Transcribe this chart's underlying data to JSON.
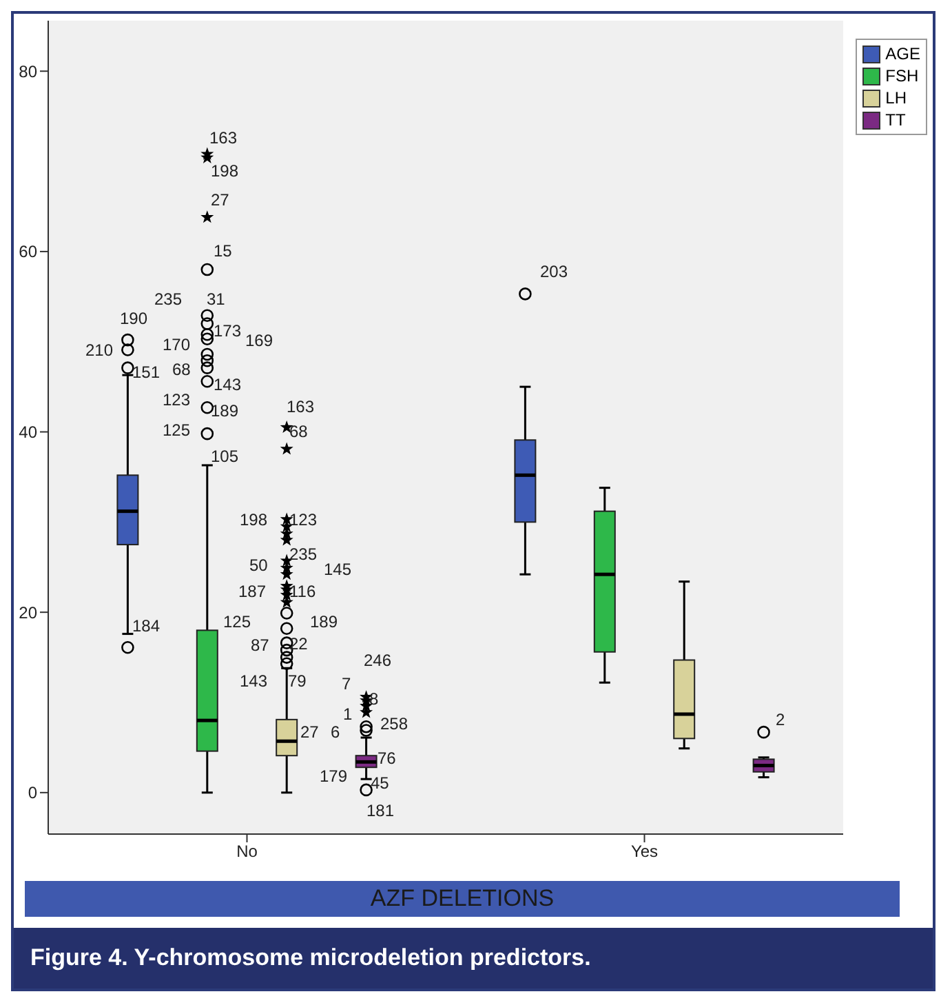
{
  "chart_data": {
    "type": "box",
    "title": "Figure 4.  Y-chromosome microdeletion predictors.",
    "xlabel": "AZF DELETIONS",
    "categories": [
      "No",
      "Yes"
    ],
    "ylim": [
      -4.6,
      85.6
    ],
    "yticks": [
      0,
      20,
      40,
      60,
      80
    ],
    "legend": "top right",
    "grid": false,
    "series": [
      {
        "name": "AGE",
        "color": "#3e5bb5",
        "boxes": [
          {
            "low": 17.6,
            "q1": 27.5,
            "median": 31.2,
            "q3": 35.2,
            "high": 46.3,
            "outliers": [
              16.1,
              47.1,
              49.1,
              50.2
            ]
          },
          {
            "low": 24.2,
            "q1": 30.0,
            "median": 35.2,
            "q3": 39.1,
            "high": 45.0,
            "outliers": [
              55.3
            ]
          }
        ]
      },
      {
        "name": "FSH",
        "color": "#2eb84a",
        "boxes": [
          {
            "low": 0,
            "q1": 4.6,
            "median": 8.0,
            "q3": 18.0,
            "high": 36.3,
            "outliers": [
              39.8,
              42.7,
              45.6,
              47.1,
              47.9,
              48.6,
              50.3,
              50.8,
              52.0,
              52.9,
              58.0,
              63.8,
              70.4,
              70.8
            ]
          },
          {
            "low": 12.2,
            "q1": 15.6,
            "median": 24.2,
            "q3": 31.2,
            "high": 33.8
          }
        ]
      },
      {
        "name": "LH",
        "color": "#d8d29a",
        "boxes": [
          {
            "low": 0,
            "q1": 4.1,
            "median": 5.7,
            "q3": 8.1,
            "high": 13.8,
            "outliers": [
              14.3,
              15.0,
              15.8,
              16.6,
              18.2,
              19.9,
              21.1,
              21.9,
              22.5,
              22.9,
              24.2,
              24.9,
              25.7,
              28.0,
              28.7,
              29.5,
              30.3,
              38.1,
              40.5
            ]
          },
          {
            "low": 4.9,
            "q1": 6.0,
            "median": 8.7,
            "q3": 14.7,
            "high": 23.4
          }
        ]
      },
      {
        "name": "TT",
        "color": "#7b2a83",
        "boxes": [
          {
            "low": 1.5,
            "q1": 2.8,
            "median": 3.4,
            "q3": 4.1,
            "high": 6.1,
            "outliers": [
              0.3,
              6.9,
              7.3,
              8.9,
              9.6,
              10.2,
              10.6
            ]
          },
          {
            "low": 1.7,
            "q1": 2.3,
            "median": 3.0,
            "q3": 3.7,
            "high": 3.9,
            "outliers": [
              6.7
            ]
          }
        ]
      }
    ],
    "annotations": [
      "163",
      "198",
      "27",
      "15",
      "235",
      "31",
      "190",
      "173",
      "169",
      "210",
      "170",
      "151",
      "68",
      "143",
      "123",
      "189",
      "125",
      "163",
      "68",
      "105",
      "184",
      "198",
      "123",
      "50",
      "235",
      "145",
      "187",
      "116",
      "125",
      "189",
      "87",
      "22",
      "143",
      "79",
      "27",
      "6",
      "246",
      "7",
      "8",
      "1",
      "258",
      "76",
      "179",
      "45",
      "181",
      "203",
      "2"
    ]
  }
}
